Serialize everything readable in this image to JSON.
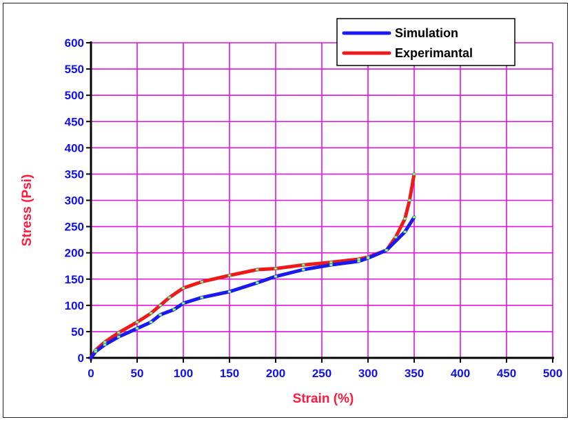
{
  "colors": {
    "grid": "#e010e0",
    "tick_labels": "#1010ee",
    "axis_titles": "#ff1a3c",
    "axis_line": "#000000",
    "simulation": "#1a1aee",
    "experimental": "#ee1a1a",
    "marker_fill": "#e8e840",
    "marker_edge": "#20c0c0"
  },
  "chart_data": {
    "type": "line",
    "xlabel": "Strain (%)",
    "ylabel": "Stress (Psi)",
    "xlim": [
      0,
      500
    ],
    "ylim": [
      0,
      600
    ],
    "xticks": [
      "0",
      "50",
      "100",
      "150",
      "200",
      "250",
      "300",
      "350",
      "400",
      "450",
      "500"
    ],
    "yticks": [
      "0",
      "50",
      "100",
      "150",
      "200",
      "250",
      "300",
      "350",
      "400",
      "450",
      "500",
      "550",
      "600"
    ],
    "grid": true,
    "legend_position": "top-right",
    "series": [
      {
        "name": "Simulation",
        "color": "#1a1aee",
        "x": [
          0,
          5,
          15,
          30,
          50,
          65,
          75,
          90,
          100,
          120,
          150,
          180,
          200,
          230,
          260,
          290,
          300,
          320,
          340,
          350
        ],
        "y": [
          0,
          12,
          25,
          40,
          56,
          68,
          82,
          92,
          104,
          115,
          126,
          143,
          155,
          168,
          177,
          184,
          190,
          205,
          240,
          268
        ]
      },
      {
        "name": "Experimantal",
        "color": "#ee1a1a",
        "x": [
          0,
          5,
          15,
          30,
          50,
          65,
          75,
          85,
          100,
          120,
          150,
          180,
          200,
          230,
          260,
          290,
          300,
          320,
          330,
          340,
          345,
          350
        ],
        "y": [
          0,
          15,
          30,
          48,
          68,
          85,
          100,
          115,
          133,
          145,
          157,
          168,
          170,
          177,
          182,
          188,
          192,
          205,
          230,
          265,
          300,
          350
        ]
      }
    ]
  }
}
